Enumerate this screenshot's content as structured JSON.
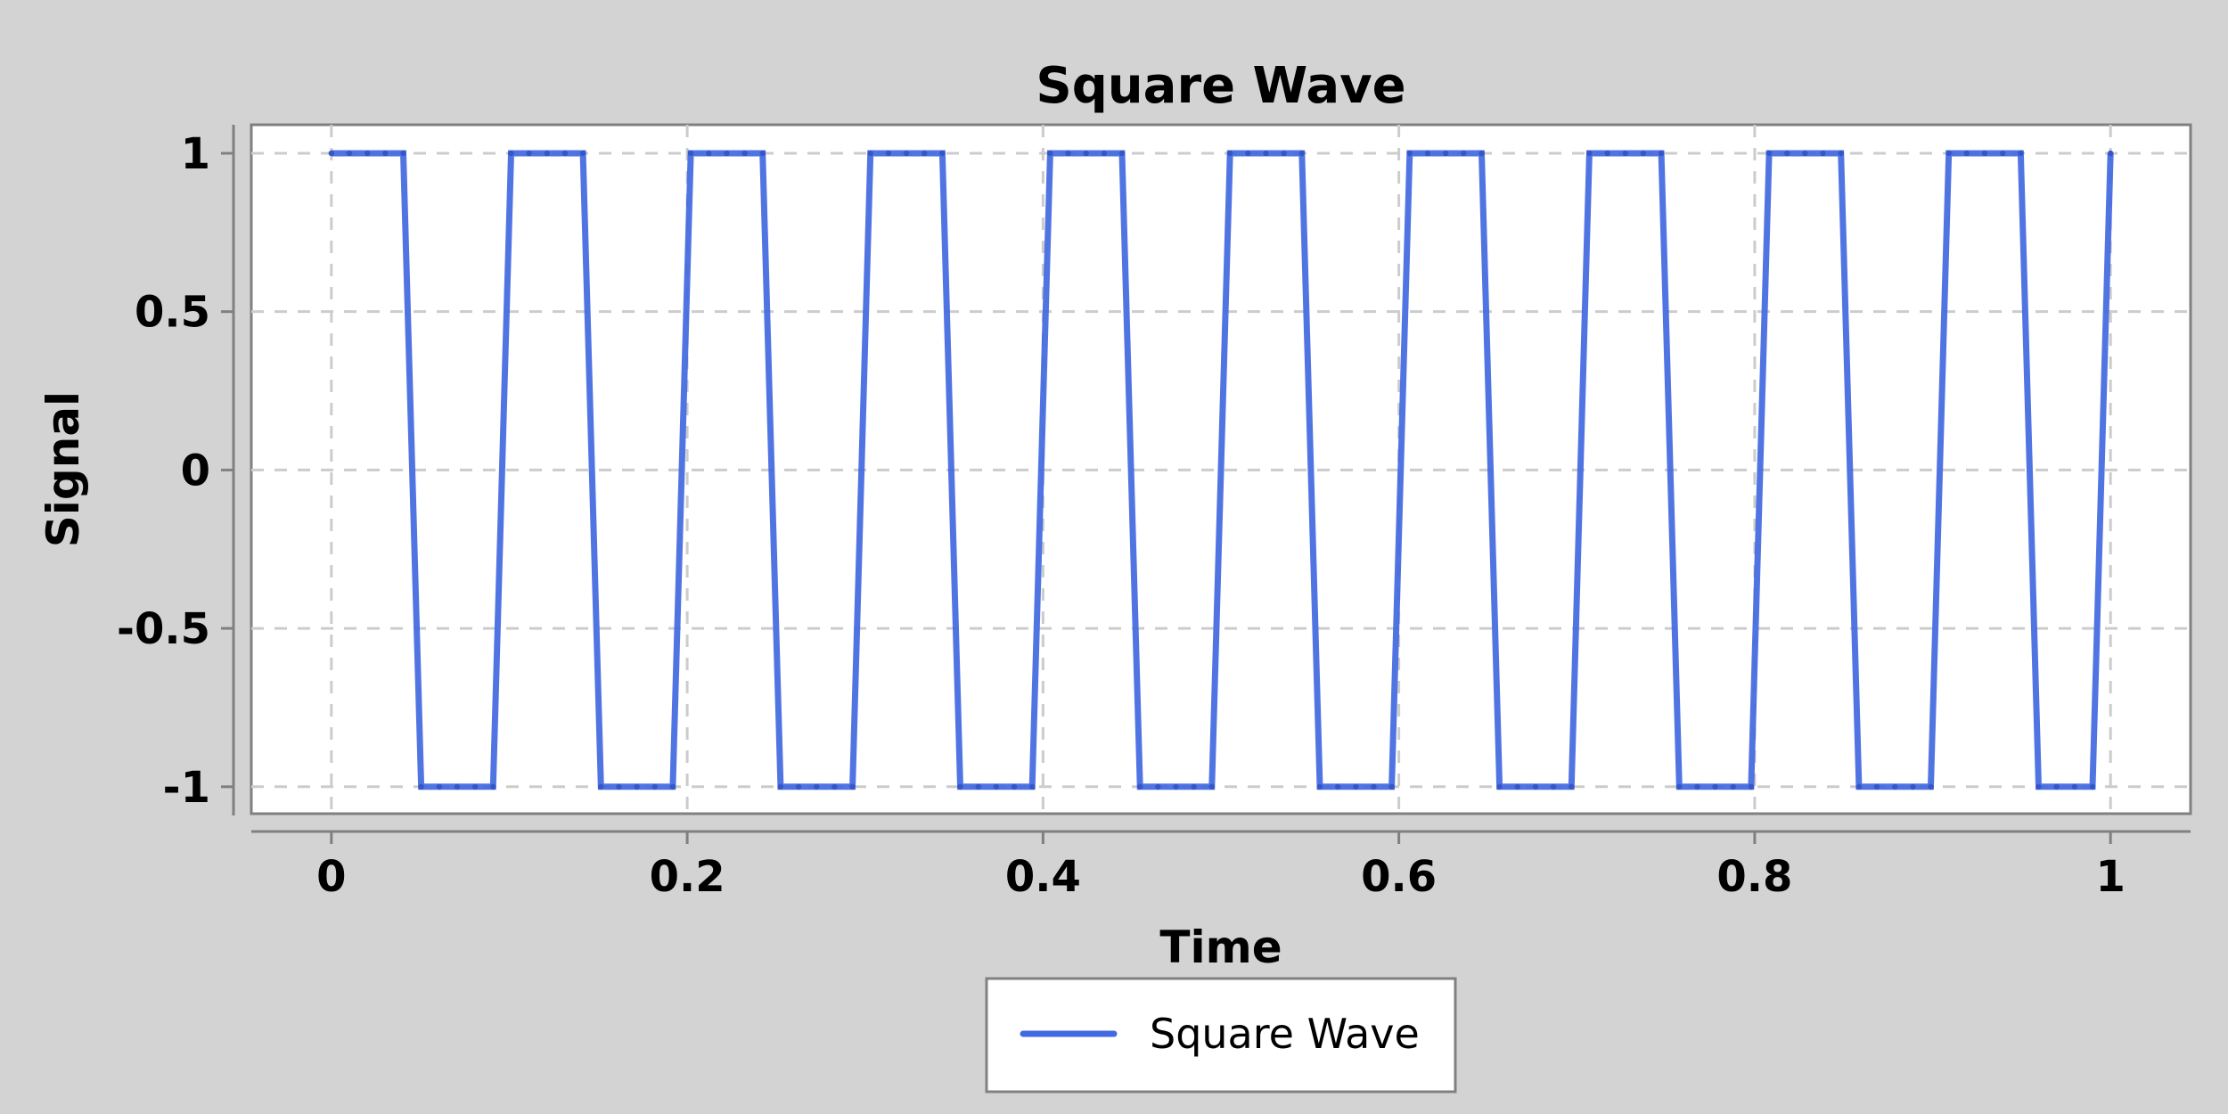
{
  "chart_data": {
    "type": "line",
    "title": "Square Wave",
    "xlabel": "Time",
    "ylabel": "Signal",
    "xlim": [
      -0.045,
      1.045
    ],
    "ylim": [
      -1.085,
      1.09
    ],
    "x_ticks": [
      0,
      0.2,
      0.4,
      0.6,
      0.8,
      1
    ],
    "x_tick_labels": [
      "0",
      "0.2",
      "0.4",
      "0.6",
      "0.8",
      "1"
    ],
    "y_ticks": [
      -1,
      -0.5,
      0,
      0.5,
      1
    ],
    "y_tick_labels": [
      "-1",
      "-0.5",
      "0",
      "0.5",
      "1"
    ],
    "grid": true,
    "legend_position": "bottom-center",
    "colors": {
      "line": "#4169e1",
      "grid": "#cccccc",
      "background": "#d3d3d3",
      "plot_background": "#ffffff",
      "frame": "#808080"
    },
    "series": [
      {
        "name": "Square Wave",
        "x": [
          0,
          0.0101,
          0.0202,
          0.0303,
          0.0404,
          0.0505,
          0.0606,
          0.0707,
          0.0808,
          0.0909,
          0.101,
          0.1111,
          0.1212,
          0.1313,
          0.1414,
          0.1515,
          0.1616,
          0.1717,
          0.1818,
          0.1919,
          0.202,
          0.2121,
          0.2222,
          0.2323,
          0.2424,
          0.2525,
          0.2626,
          0.2727,
          0.2828,
          0.2929,
          0.303,
          0.3131,
          0.3232,
          0.3333,
          0.3434,
          0.3535,
          0.3636,
          0.3737,
          0.3838,
          0.3939,
          0.404,
          0.4141,
          0.4242,
          0.4343,
          0.4444,
          0.4545,
          0.4646,
          0.4747,
          0.4848,
          0.4949,
          0.5051,
          0.5152,
          0.5253,
          0.5354,
          0.5455,
          0.5556,
          0.5657,
          0.5758,
          0.5859,
          0.596,
          0.6061,
          0.6162,
          0.6263,
          0.6364,
          0.6465,
          0.6566,
          0.6667,
          0.6768,
          0.6869,
          0.697,
          0.7071,
          0.7172,
          0.7273,
          0.7374,
          0.7475,
          0.7576,
          0.7677,
          0.7778,
          0.7879,
          0.798,
          0.8081,
          0.8182,
          0.8283,
          0.8384,
          0.8485,
          0.8586,
          0.8687,
          0.8788,
          0.8889,
          0.899,
          0.9091,
          0.9192,
          0.9293,
          0.9394,
          0.9495,
          0.9596,
          0.9697,
          0.9798,
          0.9899,
          1
        ],
        "y": [
          1,
          1,
          1,
          1,
          1,
          -1,
          -1,
          -1,
          -1,
          -1,
          1,
          1,
          1,
          1,
          1,
          -1,
          -1,
          -1,
          -1,
          -1,
          1,
          1,
          1,
          1,
          1,
          -1,
          -1,
          -1,
          -1,
          -1,
          1,
          1,
          1,
          1,
          1,
          -1,
          -1,
          -1,
          -1,
          -1,
          1,
          1,
          1,
          1,
          1,
          -1,
          -1,
          -1,
          -1,
          -1,
          1,
          1,
          1,
          1,
          1,
          -1,
          -1,
          -1,
          -1,
          -1,
          1,
          1,
          1,
          1,
          1,
          -1,
          -1,
          -1,
          -1,
          -1,
          1,
          1,
          1,
          1,
          1,
          -1,
          -1,
          -1,
          -1,
          -1,
          1,
          1,
          1,
          1,
          1,
          -1,
          -1,
          -1,
          -1,
          -1,
          1,
          1,
          1,
          1,
          1,
          -1,
          -1,
          -1,
          -1,
          1
        ]
      }
    ]
  }
}
